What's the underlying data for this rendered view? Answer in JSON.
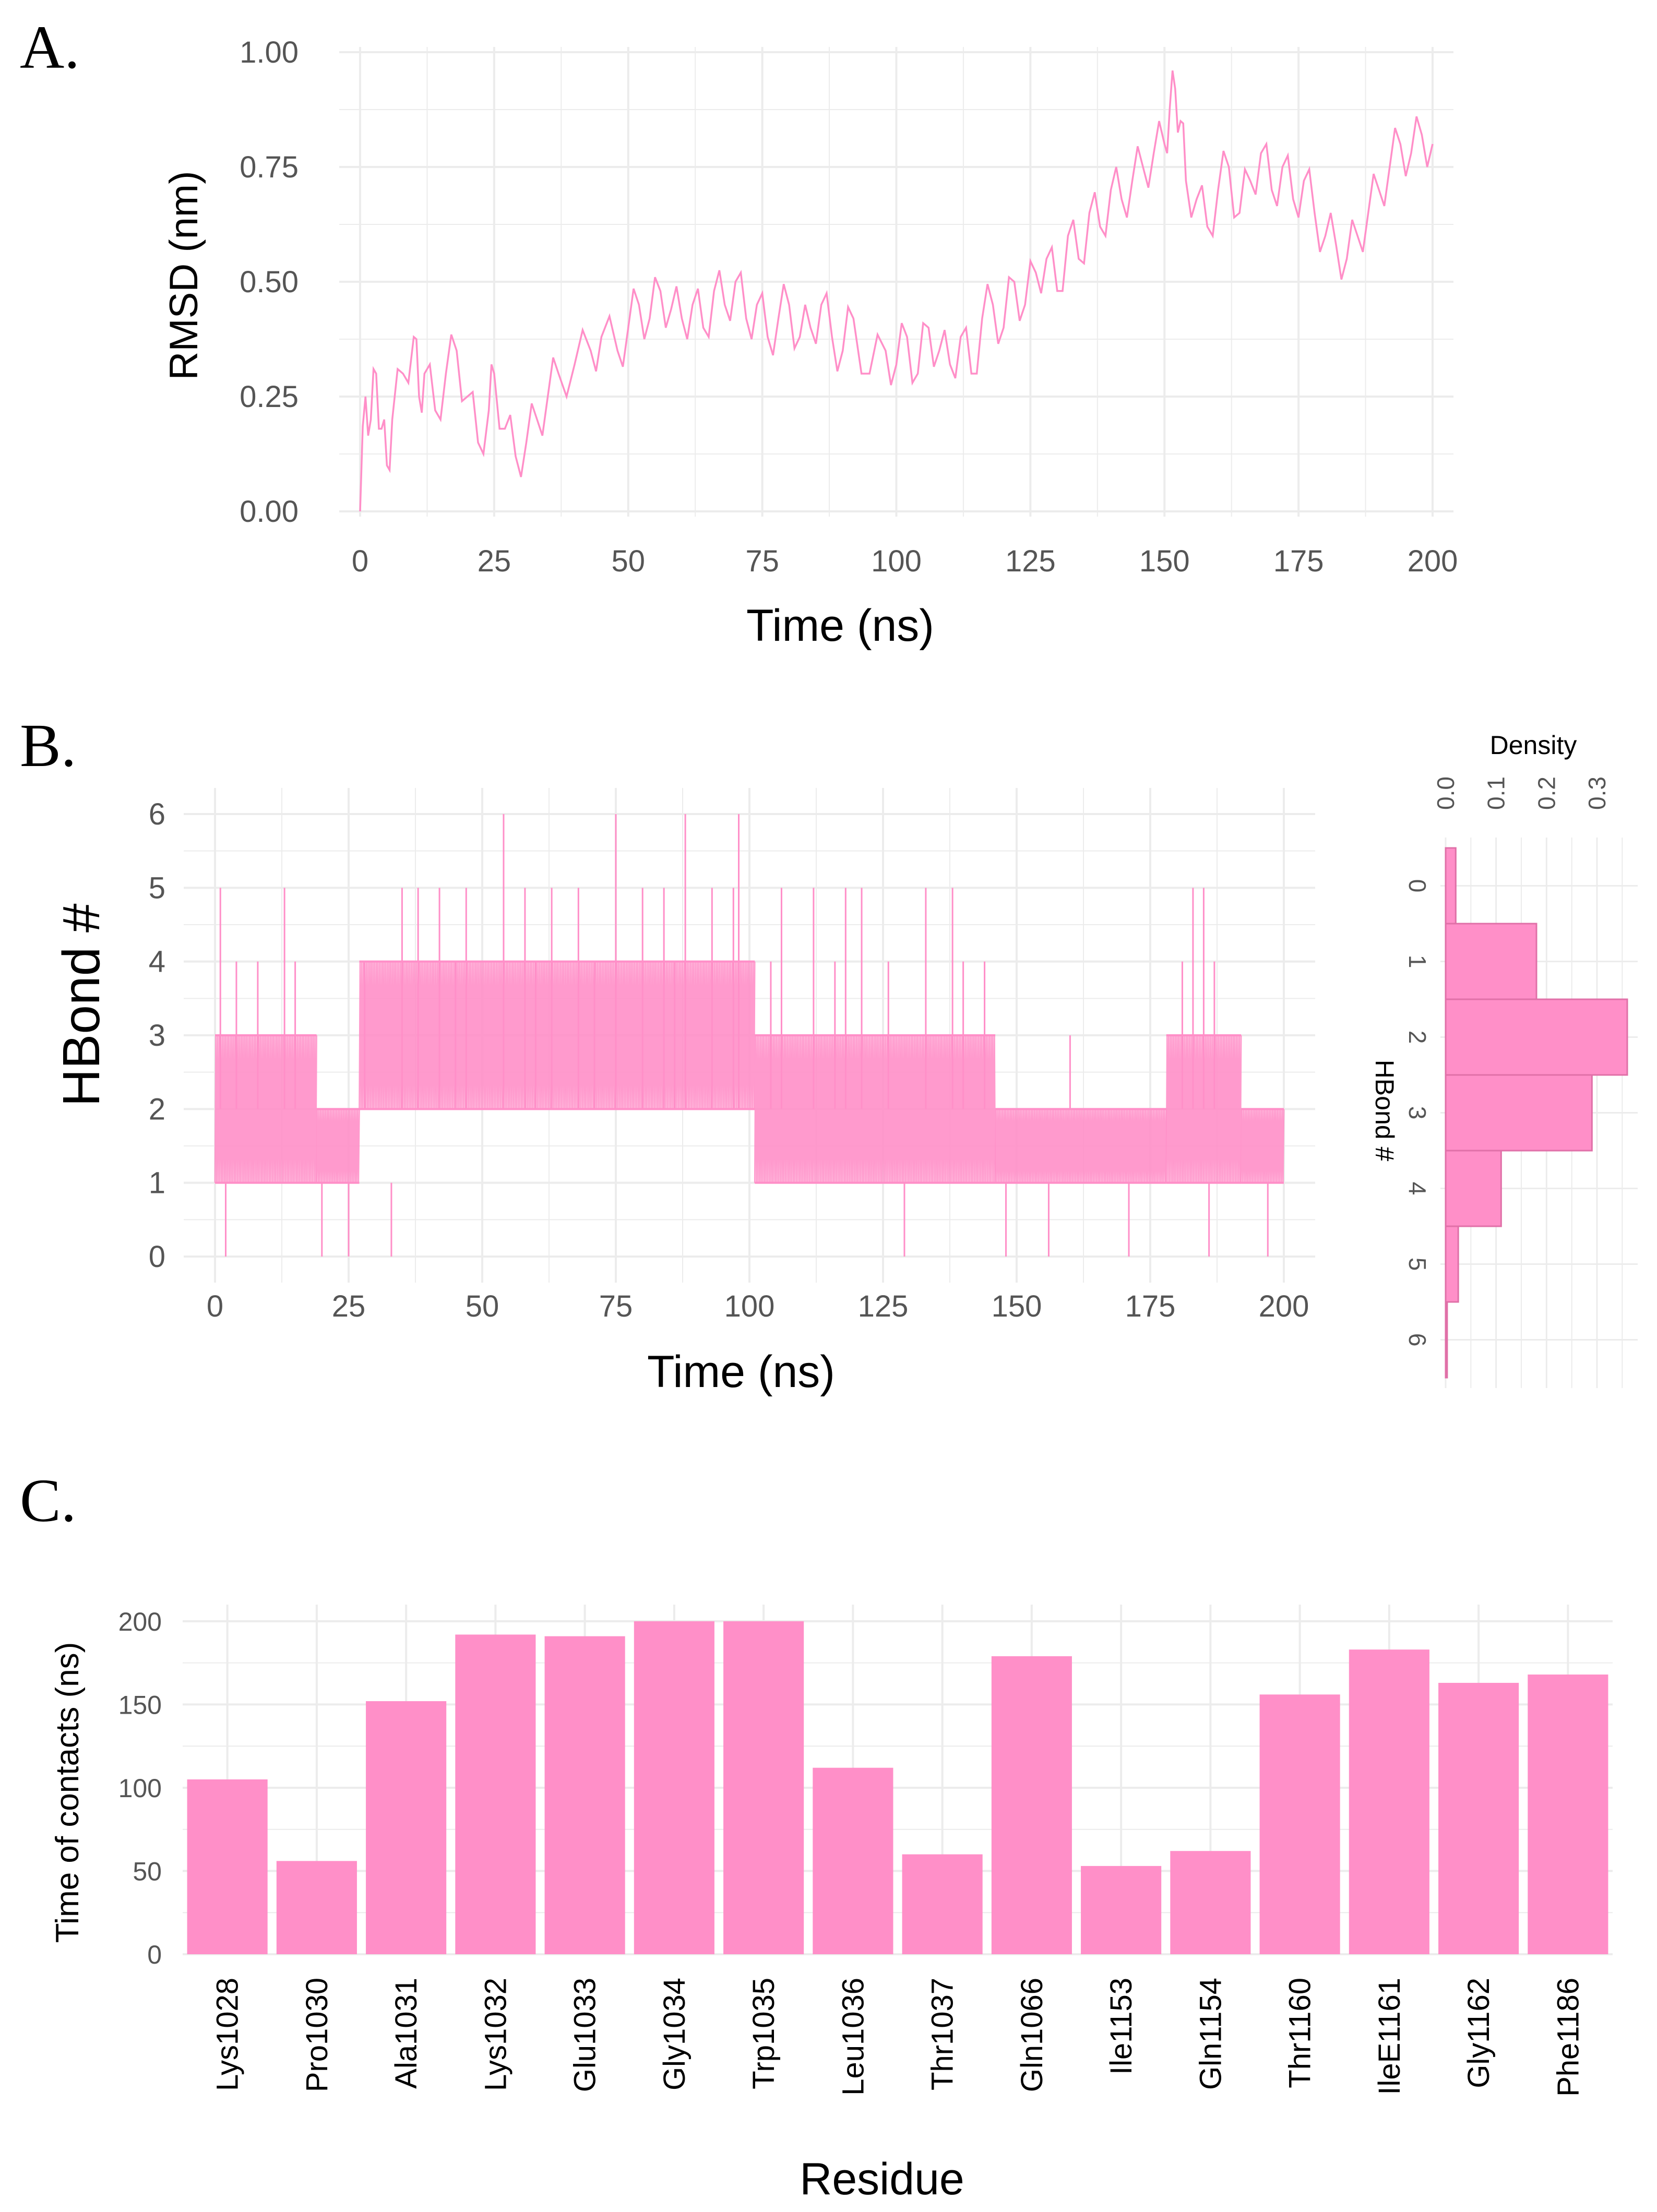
{
  "colors": {
    "series": "#ff8fc8",
    "bar": "#ff8fc8",
    "bar_edge": "#e070a8",
    "grid": "#ececec",
    "tick": "#555555"
  },
  "chart_data": [
    {
      "id": "A",
      "panel_label": "A.",
      "type": "line",
      "title": "",
      "xlabel": "Time (ns)",
      "ylabel": "RMSD (nm)",
      "xlim": [
        0,
        200
      ],
      "ylim": [
        0,
        1
      ],
      "xticks": [
        "0",
        "25",
        "50",
        "75",
        "100",
        "125",
        "150",
        "175",
        "200"
      ],
      "yticks": [
        "0.00",
        "0.25",
        "0.50",
        "0.75",
        "1.00"
      ],
      "grid": true,
      "series": [
        {
          "x": [
            0,
            1,
            2,
            3,
            4,
            5,
            6,
            8,
            10,
            11,
            12,
            14,
            16,
            18,
            20,
            22,
            24,
            25,
            27,
            29,
            31,
            33,
            35,
            37,
            40,
            43,
            45,
            48,
            50,
            52,
            54,
            56,
            58,
            60,
            62,
            64,
            66,
            68,
            70,
            72,
            74,
            76,
            78,
            80,
            82,
            84,
            86,
            88,
            90,
            92,
            95,
            98,
            100,
            102,
            104,
            106,
            108,
            110,
            112,
            114,
            116,
            118,
            120,
            122,
            124,
            126,
            128,
            130,
            132,
            134,
            136,
            138,
            140,
            142,
            144,
            146,
            148,
            150,
            151,
            152,
            153,
            154,
            156,
            158,
            160,
            162,
            164,
            166,
            168,
            170,
            172,
            174,
            176,
            178,
            180,
            182,
            184,
            186,
            188,
            190,
            192,
            194,
            196,
            198,
            200
          ],
          "y": [
            0.0,
            0.25,
            0.2,
            0.3,
            0.18,
            0.1,
            0.2,
            0.3,
            0.38,
            0.25,
            0.3,
            0.22,
            0.3,
            0.35,
            0.25,
            0.15,
            0.22,
            0.3,
            0.18,
            0.12,
            0.15,
            0.2,
            0.25,
            0.3,
            0.32,
            0.35,
            0.38,
            0.35,
            0.4,
            0.45,
            0.42,
            0.48,
            0.44,
            0.42,
            0.45,
            0.4,
            0.48,
            0.45,
            0.5,
            0.42,
            0.45,
            0.38,
            0.42,
            0.45,
            0.38,
            0.4,
            0.45,
            0.38,
            0.35,
            0.42,
            0.3,
            0.35,
            0.32,
            0.38,
            0.3,
            0.4,
            0.35,
            0.32,
            0.38,
            0.3,
            0.42,
            0.45,
            0.4,
            0.5,
            0.45,
            0.52,
            0.55,
            0.48,
            0.6,
            0.55,
            0.65,
            0.62,
            0.7,
            0.68,
            0.72,
            0.75,
            0.78,
            0.8,
            0.88,
            0.92,
            0.85,
            0.72,
            0.68,
            0.62,
            0.7,
            0.75,
            0.65,
            0.72,
            0.78,
            0.7,
            0.75,
            0.68,
            0.72,
            0.65,
            0.6,
            0.58,
            0.55,
            0.6,
            0.65,
            0.7,
            0.75,
            0.8,
            0.78,
            0.82,
            0.8
          ]
        }
      ]
    },
    {
      "id": "B",
      "panel_label": "B.",
      "type": "line",
      "title": "",
      "xlabel": "Time (ns)",
      "ylabel": "HBond #",
      "xlim": [
        0,
        200
      ],
      "ylim": [
        0,
        6
      ],
      "xticks": [
        "0",
        "25",
        "50",
        "75",
        "100",
        "125",
        "150",
        "175",
        "200"
      ],
      "yticks": [
        "0",
        "1",
        "2",
        "3",
        "4",
        "5",
        "6"
      ],
      "grid": true,
      "segments": [
        {
          "x": [
            0,
            19
          ],
          "y": [
            1,
            3
          ]
        },
        {
          "x": [
            19,
            27
          ],
          "y": [
            1,
            2
          ]
        },
        {
          "x": [
            27,
            101
          ],
          "y": [
            2,
            4
          ]
        },
        {
          "x": [
            101,
            146
          ],
          "y": [
            1,
            3
          ]
        },
        {
          "x": [
            146,
            178
          ],
          "y": [
            1,
            2
          ]
        },
        {
          "x": [
            178,
            192
          ],
          "y": [
            1,
            3
          ]
        },
        {
          "x": [
            192,
            200
          ],
          "y": [
            1,
            2
          ]
        }
      ],
      "spikes": {
        "x": [
          1,
          13,
          35,
          38,
          42,
          47,
          54,
          58,
          63,
          68,
          75,
          80,
          84,
          88,
          93,
          97,
          98,
          106,
          112,
          118,
          121,
          133,
          138,
          183,
          185,
          4,
          8,
          15,
          28,
          45,
          60,
          71,
          86,
          104,
          116,
          126,
          140,
          144,
          160,
          181,
          187,
          2,
          20,
          25,
          33,
          129,
          148,
          156,
          171,
          186,
          197
        ],
        "y": [
          5,
          5,
          5,
          5,
          5,
          5,
          6,
          5,
          5,
          5,
          6,
          5,
          5,
          6,
          5,
          5,
          6,
          5,
          5,
          5,
          5,
          5,
          5,
          5,
          5,
          4,
          4,
          4,
          4,
          4,
          4,
          4,
          4,
          4,
          4,
          4,
          4,
          4,
          3,
          4,
          4,
          0,
          0,
          0,
          0,
          0,
          0,
          0,
          0,
          0,
          0
        ]
      }
    },
    {
      "id": "B-hist",
      "type": "bar",
      "title": "",
      "xlabel": "Density",
      "ylabel": "HBond #",
      "categories": [
        "0",
        "1",
        "2",
        "3",
        "4",
        "5",
        "6"
      ],
      "values": [
        0.02,
        0.18,
        0.36,
        0.29,
        0.11,
        0.025,
        0.003
      ],
      "xlim": [
        0,
        0.36
      ],
      "xticks": [
        "0.0",
        "0.1",
        "0.2",
        "0.3"
      ],
      "grid": true
    },
    {
      "id": "C",
      "panel_label": "C.",
      "type": "bar",
      "title": "",
      "xlabel": "Residue",
      "ylabel": "Time of contacts (ns)",
      "categories": [
        "Lys1028",
        "Pro1030",
        "Ala1031",
        "Lys1032",
        "Glu1033",
        "Gly1034",
        "Trp1035",
        "Leu1036",
        "Thr1037",
        "Gln1066",
        "Ile1153",
        "Gln1154",
        "Thr1160",
        "IleE1161",
        "Gly1162",
        "Phe1186"
      ],
      "values": [
        105,
        56,
        152,
        192,
        191,
        200,
        200,
        112,
        60,
        179,
        53,
        62,
        156,
        183,
        163,
        168
      ],
      "ylim": [
        0,
        210
      ],
      "yticks": [
        "0",
        "50",
        "100",
        "150",
        "200"
      ],
      "grid": true
    }
  ]
}
